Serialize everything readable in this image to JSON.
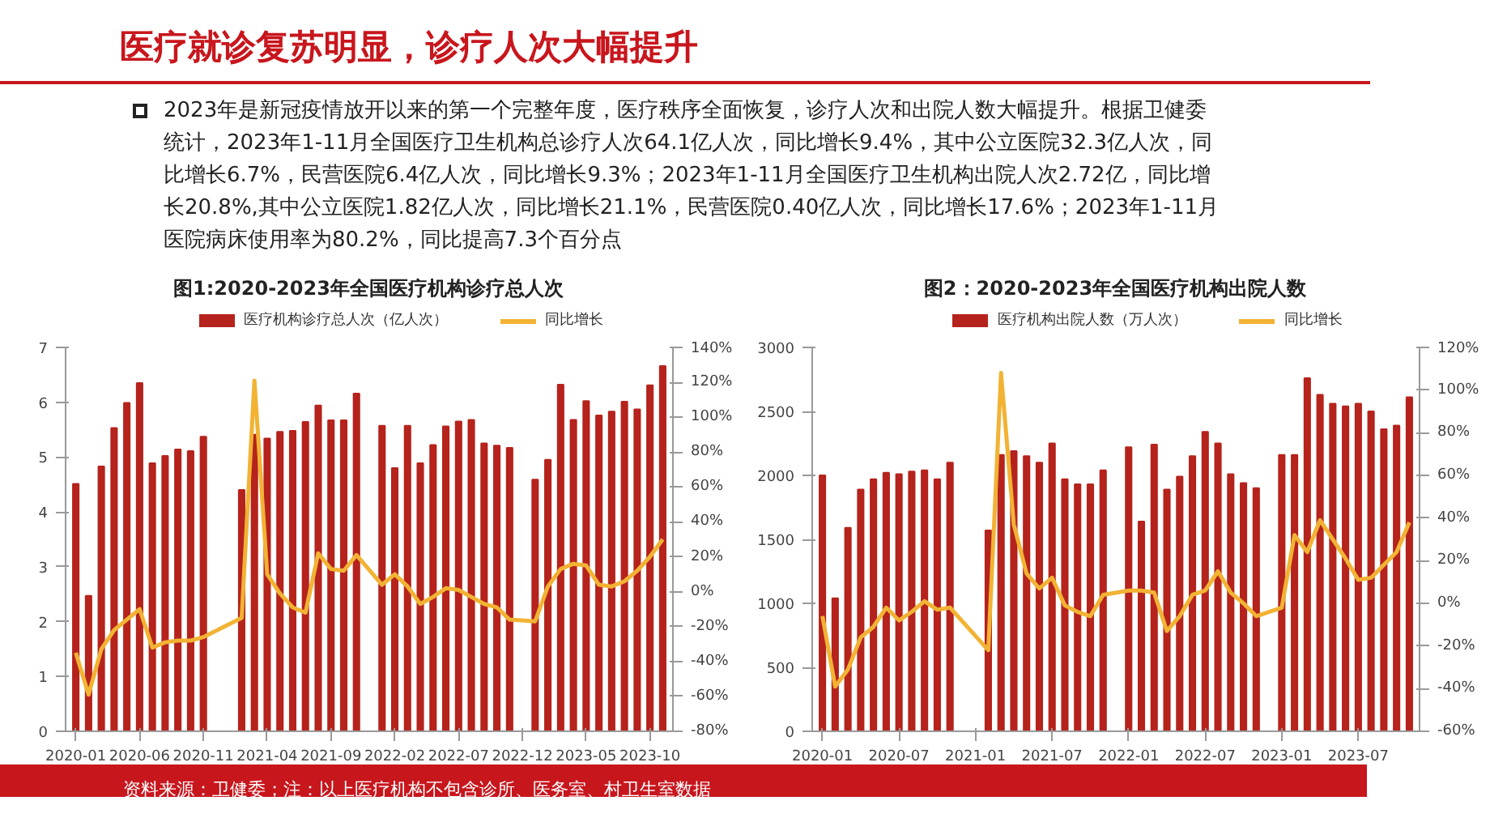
{
  "chart_data": [
    {
      "type": "other",
      "title": "医疗就诊复苏明显，诊疗人次大幅提升",
      "annotations": [
        "2023年是新冠疫情放开以来的第一个完整年度，医疗秩序全面恢复，诊疗人次和出院人数大幅提升。根据卫健委统计，2023年1-11月全国医疗卫生机构总诊疗人次64.1亿人次，同比增长9.4%，其中公立医院32.3亿人次，同比增长6.7%，民营医院6.4亿人次，同比增长9.3%；2023年1-11月全国医疗卫生机构出院人次2.72亿，同比增长20.8%,其中公立医院1.82亿人次，同比增长21.1%，民营医院0.40亿人次，同比增长17.6%；2023年1-11月医院病床使用率为80.2%，同比提高7.3个百分点",
        "资料来源：卫健委；注：以上医疗机构不包含诊所、医务室、村卫生室数据"
      ]
    },
    {
      "type": "bar",
      "title": "图1:2020-2023年全国医疗机构诊疗总人次",
      "legend": "top",
      "categories": [
        "2020-01",
        null,
        null,
        null,
        null,
        "2020-06",
        null,
        null,
        null,
        null,
        "2020-11",
        null,
        null,
        null,
        null,
        "2021-04",
        null,
        null,
        null,
        null,
        "2021-09",
        null,
        null,
        null,
        null,
        "2022-02",
        null,
        null,
        null,
        null,
        "2022-07",
        null,
        null,
        null,
        null,
        "2022-12",
        null,
        null,
        null,
        null,
        "2023-05",
        null,
        null,
        null,
        null,
        "2023-10",
        null
      ],
      "ylim": [
        0,
        7
      ],
      "yticks": [
        0,
        1,
        2,
        3,
        4,
        5,
        6,
        7
      ],
      "y2lim": [
        -80,
        140
      ],
      "y2ticks": [
        {
          "value": -80,
          "label": "-80%"
        },
        {
          "value": -60,
          "label": "-60%"
        },
        {
          "value": -40,
          "label": "-40%"
        },
        {
          "value": -20,
          "label": "-20%"
        },
        {
          "value": 0,
          "label": "0%"
        },
        {
          "value": 20,
          "label": "20%"
        },
        {
          "value": 40,
          "label": "40%"
        },
        {
          "value": 60,
          "label": "60%"
        },
        {
          "value": 80,
          "label": "80%"
        },
        {
          "value": 100,
          "label": "100%"
        },
        {
          "value": 120,
          "label": "120%"
        },
        {
          "value": 140,
          "label": "140%"
        }
      ],
      "series": [
        {
          "name": "医疗机构诊疗总人次（亿人次）",
          "type": "bar",
          "color": "#b5231c",
          "values": [
            4.51,
            2.47,
            4.83,
            5.53,
            5.99,
            6.35,
            4.89,
            5.02,
            5.14,
            5.11,
            5.37,
            null,
            null,
            4.4,
            5.41,
            5.34,
            5.46,
            5.48,
            5.64,
            5.94,
            5.67,
            5.67,
            6.16,
            null,
            5.57,
            4.8,
            5.57,
            4.89,
            5.22,
            5.56,
            5.65,
            5.68,
            5.25,
            5.21,
            5.17,
            null,
            4.59,
            4.95,
            6.32,
            5.68,
            6.02,
            5.76,
            5.83,
            6.01,
            5.87,
            6.31,
            6.66
          ]
        },
        {
          "name": "同比增长",
          "type": "line",
          "axis": "y2",
          "color": "#f2b233",
          "values": [
            -35,
            -59,
            -33,
            -22,
            -16,
            -10,
            -32,
            -29,
            -28,
            -28,
            -26,
            null,
            null,
            -15,
            121,
            10,
            -1,
            -9,
            -12,
            22,
            13,
            12,
            21,
            null,
            4,
            10,
            3,
            -7,
            -3,
            2,
            1,
            -3,
            -7,
            -9,
            -16,
            null,
            -17,
            3,
            13,
            16,
            15,
            4,
            3,
            6,
            12,
            20,
            30
          ]
        }
      ]
    },
    {
      "type": "bar",
      "title": "图2：2020-2023年全国医疗机构出院人数",
      "legend": "top",
      "categories": [
        "2020-01",
        null,
        null,
        null,
        null,
        null,
        "2020-07",
        null,
        null,
        null,
        null,
        null,
        "2021-01",
        null,
        null,
        null,
        null,
        null,
        "2021-07",
        null,
        null,
        null,
        null,
        null,
        "2022-01",
        null,
        null,
        null,
        null,
        null,
        "2022-07",
        null,
        null,
        null,
        null,
        null,
        "2023-01",
        null,
        null,
        null,
        null,
        null,
        "2023-07",
        null,
        null,
        null,
        null
      ],
      "ylim": [
        0,
        3000
      ],
      "yticks": [
        0,
        500,
        1000,
        1500,
        2000,
        2500,
        3000
      ],
      "y2lim": [
        -60,
        120
      ],
      "y2ticks": [
        {
          "value": -60,
          "label": "-60%"
        },
        {
          "value": -40,
          "label": "-40%"
        },
        {
          "value": -20,
          "label": "-20%"
        },
        {
          "value": 0,
          "label": "0%"
        },
        {
          "value": 20,
          "label": "20%"
        },
        {
          "value": 40,
          "label": "40%"
        },
        {
          "value": 60,
          "label": "60%"
        },
        {
          "value": 80,
          "label": "80%"
        },
        {
          "value": 100,
          "label": "100%"
        },
        {
          "value": 120,
          "label": "120%"
        }
      ],
      "series": [
        {
          "name": "医疗机构出院人数（万人次）",
          "type": "bar",
          "color": "#b5231c",
          "values": [
            2000,
            1040,
            1590,
            1890,
            1970,
            2020,
            2010,
            2030,
            2040,
            1970,
            2100,
            null,
            null,
            1570,
            2160,
            2190,
            2150,
            2100,
            2250,
            1970,
            1930,
            1930,
            2040,
            null,
            2220,
            1640,
            2240,
            1890,
            1990,
            2150,
            2340,
            2250,
            2010,
            1940,
            1900,
            null,
            2160,
            2160,
            2760,
            2630,
            2560,
            2540,
            2560,
            2500,
            2360,
            2390,
            2610
          ]
        },
        {
          "name": "同比增长",
          "type": "line",
          "axis": "y2",
          "color": "#f2b233",
          "values": [
            -6,
            -39,
            -31,
            -16,
            -11,
            -2,
            -8,
            -4,
            1,
            -3,
            -2,
            null,
            null,
            -22,
            108,
            37,
            14,
            7,
            12,
            -1,
            -4,
            -6,
            4,
            null,
            6,
            6,
            5,
            -13,
            -6,
            4,
            6,
            15,
            5,
            0,
            -6,
            null,
            -2,
            32,
            24,
            39,
            30,
            21,
            11,
            12,
            18,
            24,
            38
          ]
        }
      ]
    }
  ]
}
